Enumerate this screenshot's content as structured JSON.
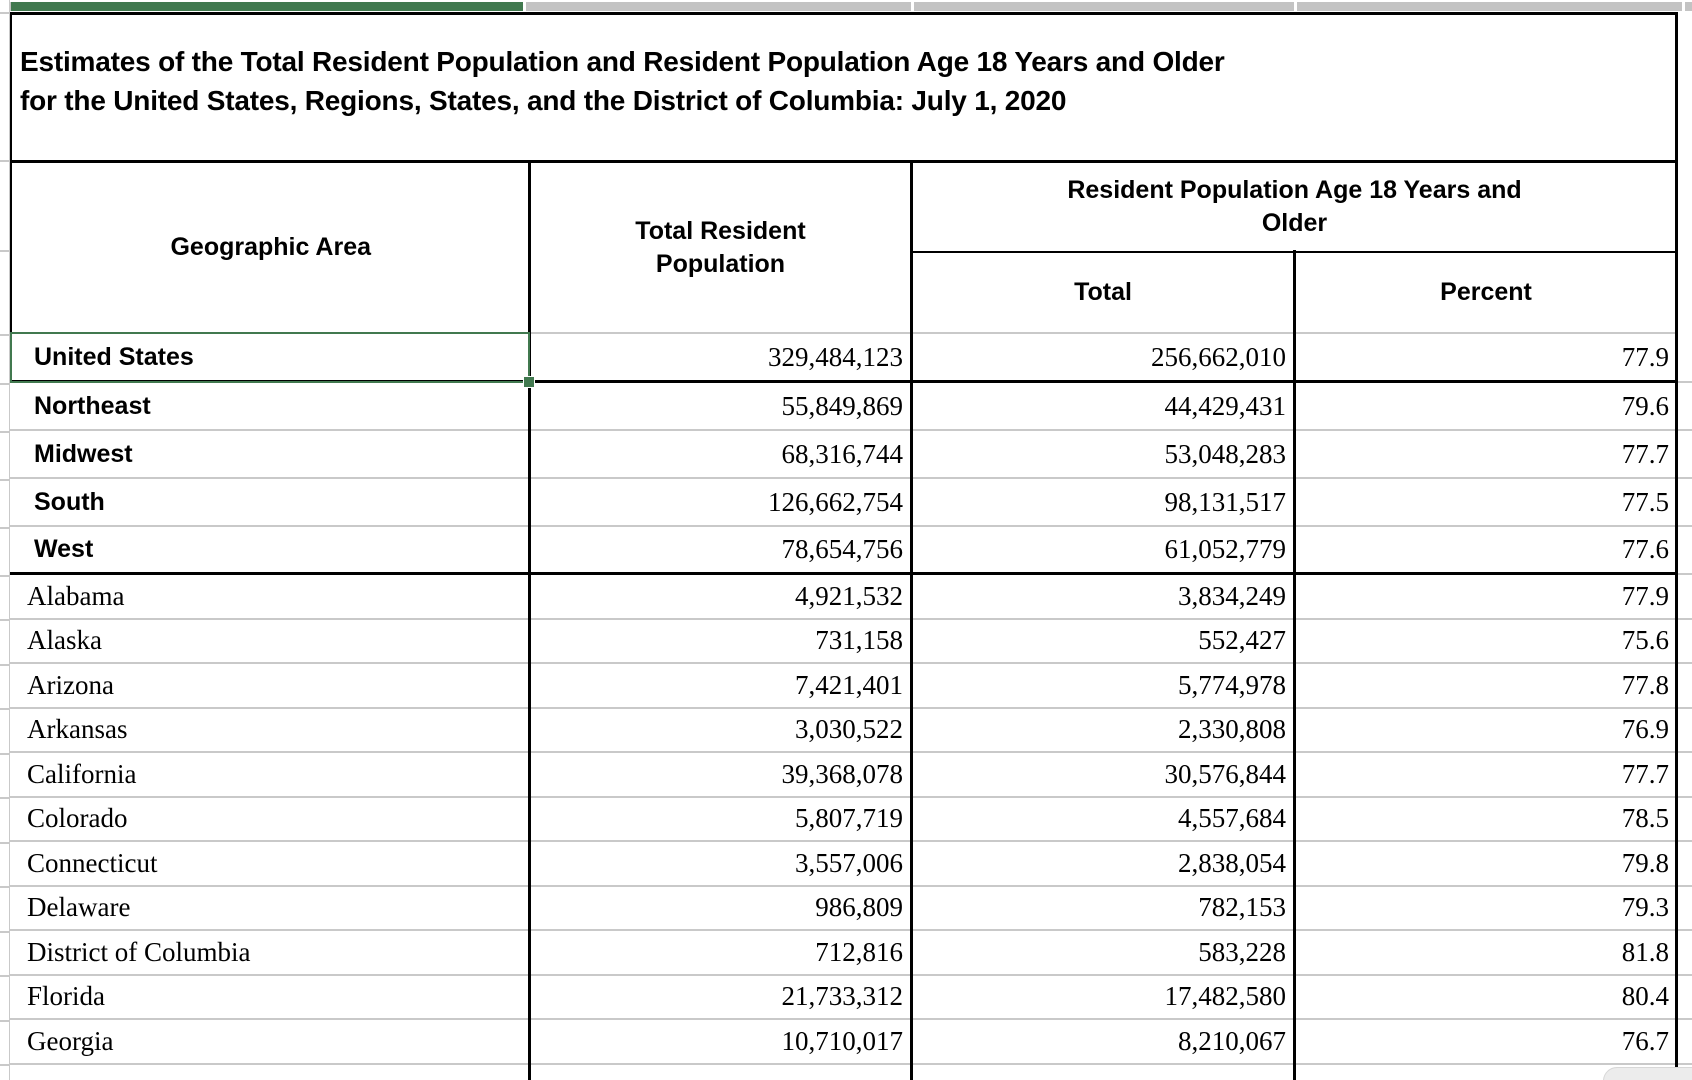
{
  "title": {
    "line1": "Estimates of the Total Resident Population and Resident Population Age 18 Years and Older",
    "line2": "for the United States, Regions, States, and the District of Columbia: July 1, 2020"
  },
  "table": {
    "columns": {
      "geo": "Geographic Area",
      "total_pop": "Total Resident Population",
      "age18_group": "Resident Population Age 18 Years and Older",
      "age18_total": "Total",
      "age18_percent": "Percent"
    },
    "rows": [
      {
        "area": "United States",
        "total": "329,484,123",
        "age18": "256,662,010",
        "pct": "77.9",
        "emphasis": "bold",
        "selected": true,
        "divider": "black"
      },
      {
        "area": "Northeast",
        "total": "55,849,869",
        "age18": "44,429,431",
        "pct": "79.6",
        "emphasis": "bold",
        "divider": "gray"
      },
      {
        "area": "Midwest",
        "total": "68,316,744",
        "age18": "53,048,283",
        "pct": "77.7",
        "emphasis": "bold",
        "divider": "gray"
      },
      {
        "area": "South",
        "total": "126,662,754",
        "age18": "98,131,517",
        "pct": "77.5",
        "emphasis": "bold",
        "divider": "gray"
      },
      {
        "area": "West",
        "total": "78,654,756",
        "age18": "61,052,779",
        "pct": "77.6",
        "emphasis": "bold",
        "divider": "black"
      },
      {
        "area": "Alabama",
        "total": "4,921,532",
        "age18": "3,834,249",
        "pct": "77.9",
        "emphasis": "normal",
        "divider": "gray"
      },
      {
        "area": "Alaska",
        "total": "731,158",
        "age18": "552,427",
        "pct": "75.6",
        "emphasis": "normal",
        "divider": "gray"
      },
      {
        "area": "Arizona",
        "total": "7,421,401",
        "age18": "5,774,978",
        "pct": "77.8",
        "emphasis": "normal",
        "divider": "gray"
      },
      {
        "area": "Arkansas",
        "total": "3,030,522",
        "age18": "2,330,808",
        "pct": "76.9",
        "emphasis": "normal",
        "divider": "gray"
      },
      {
        "area": "California",
        "total": "39,368,078",
        "age18": "30,576,844",
        "pct": "77.7",
        "emphasis": "normal",
        "divider": "gray"
      },
      {
        "area": "Colorado",
        "total": "5,807,719",
        "age18": "4,557,684",
        "pct": "78.5",
        "emphasis": "normal",
        "divider": "gray"
      },
      {
        "area": "Connecticut",
        "total": "3,557,006",
        "age18": "2,838,054",
        "pct": "79.8",
        "emphasis": "normal",
        "divider": "gray"
      },
      {
        "area": "Delaware",
        "total": "986,809",
        "age18": "782,153",
        "pct": "79.3",
        "emphasis": "normal",
        "divider": "gray"
      },
      {
        "area": "District of Columbia",
        "total": "712,816",
        "age18": "583,228",
        "pct": "81.8",
        "emphasis": "normal",
        "divider": "gray"
      },
      {
        "area": "Florida",
        "total": "21,733,312",
        "age18": "17,482,580",
        "pct": "80.4",
        "emphasis": "normal",
        "divider": "gray"
      },
      {
        "area": "Georgia",
        "total": "10,710,017",
        "age18": "8,210,067",
        "pct": "76.7",
        "emphasis": "normal",
        "divider": "gray"
      }
    ]
  },
  "colors": {
    "selection_green": "#41794f",
    "gridline": "#c9c9c9",
    "table_border": "#000000",
    "top_strip_gray": "#c3c3c3",
    "scroll_corner_gray": "#ececec"
  }
}
